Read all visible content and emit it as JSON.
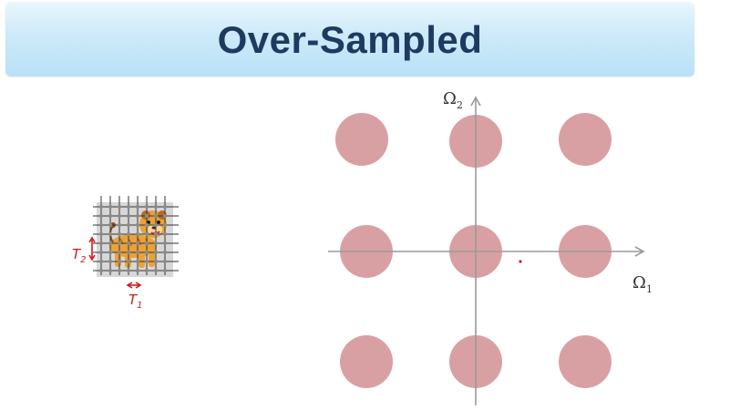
{
  "slide": {
    "title": "Over-Sampled"
  },
  "diagram": {
    "axis_x_label": "Ω",
    "axis_x_sub": "1",
    "axis_y_label": "Ω",
    "axis_y_sub": "2",
    "spectral_replica_color": "#d9a0a3",
    "axis_color": "#9a9a9a"
  },
  "annotation": {
    "t1_label": "T",
    "t1_sub": "1",
    "t2_label": "T",
    "t2_sub": "2",
    "ink_color": "#d21b1b"
  },
  "icons": {
    "sampled_image": "cartoon-lion-cub-on-sampling-grid"
  }
}
